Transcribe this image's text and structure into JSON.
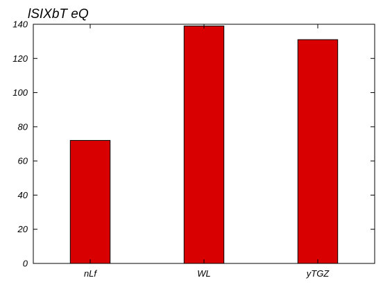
{
  "chart_data": {
    "type": "bar",
    "title": "lSIXbT eQ",
    "categories": [
      "nLf",
      "WL",
      "yTGZ"
    ],
    "values": [
      72,
      139,
      131
    ],
    "xlabel": "",
    "ylabel": "",
    "ylim": [
      0,
      140
    ],
    "yticks": [
      0,
      20,
      40,
      60,
      80,
      100,
      120,
      140
    ],
    "grid": false,
    "legend": "none",
    "bar_color": "#d80000"
  }
}
